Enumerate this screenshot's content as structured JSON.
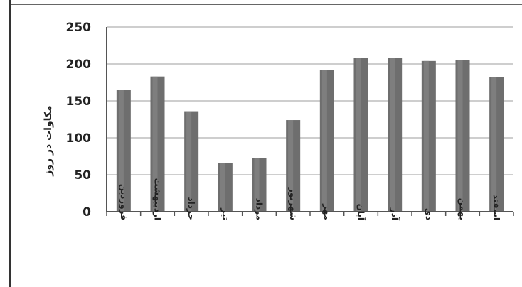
{
  "chart_data": {
    "type": "bar",
    "ylabel": "مکاوات در روز",
    "ylim": [
      0,
      250
    ],
    "yticks": [
      0,
      50,
      100,
      150,
      200,
      250
    ],
    "grid": true,
    "categories": [
      "فروردین",
      "اردیبهشت",
      "خرداد",
      "تیر",
      "مرداد",
      "شهریور",
      "مهر",
      "آبان",
      "آذر",
      "دی",
      "بهمن",
      "اسفند"
    ],
    "values": [
      165,
      183,
      136,
      66,
      73,
      124,
      192,
      208,
      208,
      204,
      205,
      182
    ],
    "colors": {
      "bar": "#6e6e6e",
      "bar_highlight": "#8c8c8c",
      "grid": "#bdbdbd",
      "axis": "#555555"
    }
  }
}
